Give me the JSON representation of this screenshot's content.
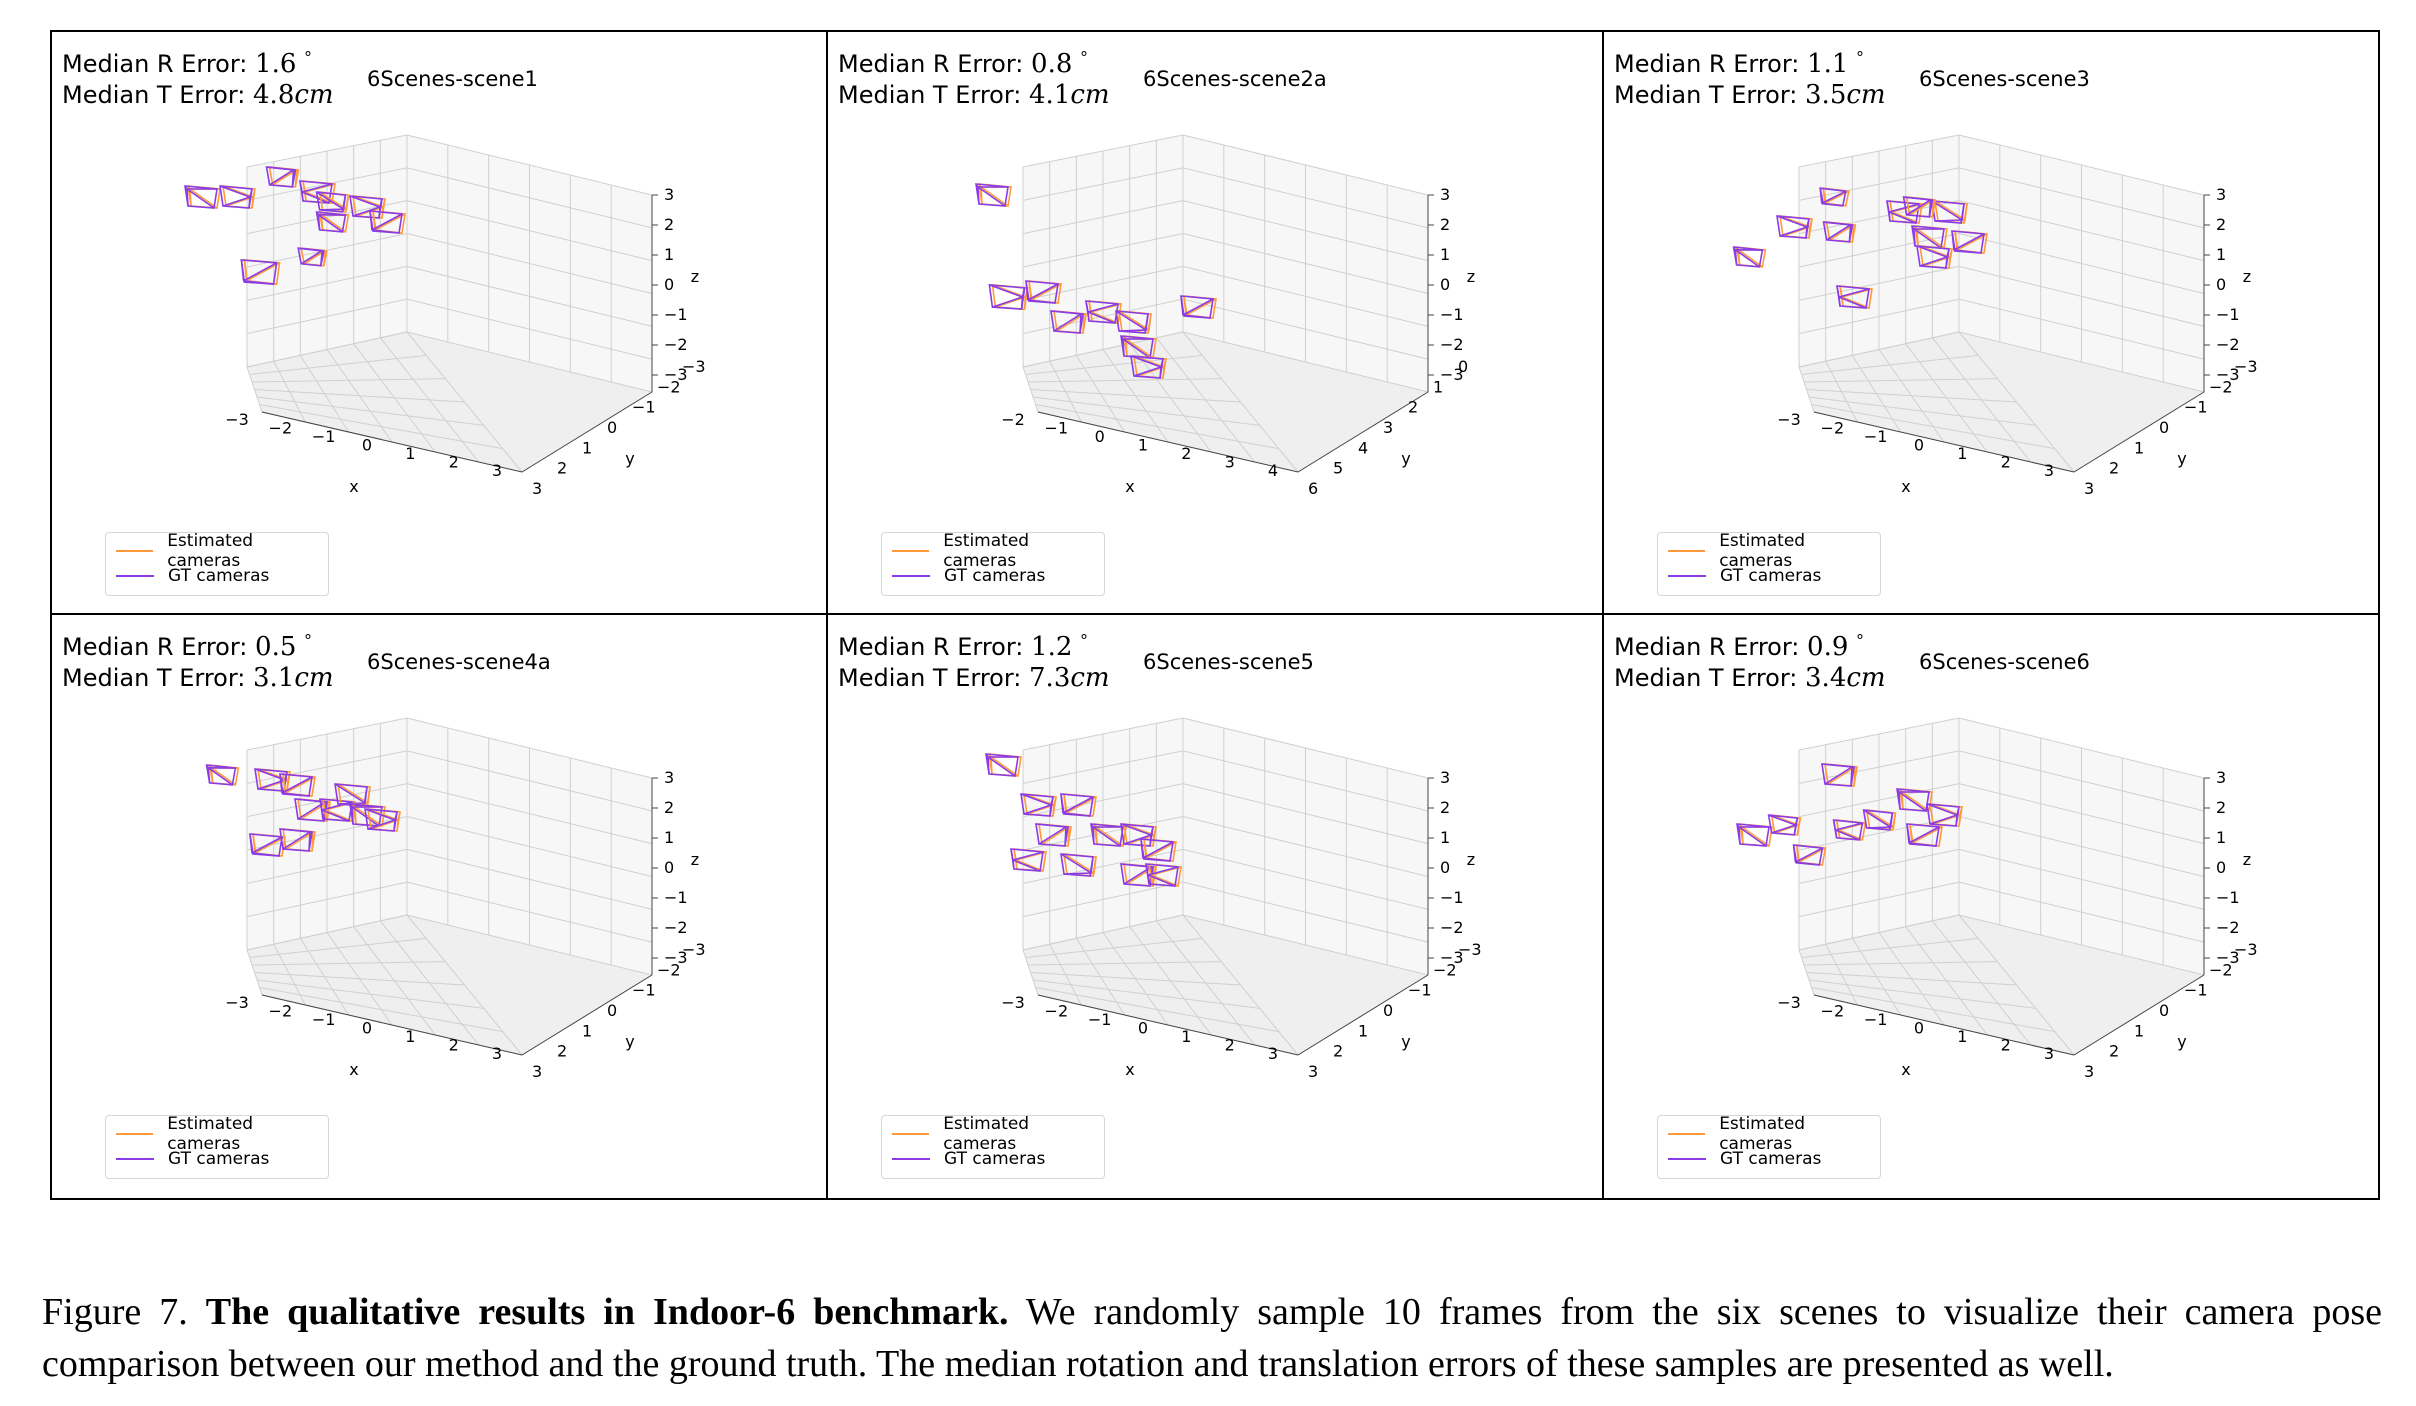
{
  "labels": {
    "r_error": "Median R Error:",
    "t_error": "Median T Error:",
    "degree": "°",
    "unit": "cm",
    "axis_x": "x",
    "axis_y": "y",
    "axis_z": "z"
  },
  "legend": {
    "estimated": "Estimated cameras",
    "gt": "GT cameras"
  },
  "colors": {
    "estimated": "#ff9a3c",
    "gt": "#8a3ce6",
    "grid": "#d0d0d0",
    "pane": "#f2f2f2"
  },
  "panels": [
    {
      "scene": "6Scenes-scene1",
      "r_error": "1.6",
      "t_error": "4.8",
      "x_ticks": [
        "−3",
        "−2",
        "−1",
        "0",
        "1",
        "2",
        "3"
      ],
      "y_ticks": [
        "−3",
        "−2",
        "−1",
        "0",
        "1",
        "2",
        "3"
      ],
      "z_ticks": [
        "3",
        "2",
        "1",
        "0",
        "−1",
        "−2",
        "−3"
      ]
    },
    {
      "scene": "6Scenes-scene2a",
      "r_error": "0.8",
      "t_error": "4.1",
      "x_ticks": [
        "−2",
        "−1",
        "0",
        "1",
        "2",
        "3",
        "4"
      ],
      "y_ticks": [
        "0",
        "1",
        "2",
        "3",
        "4",
        "5",
        "6"
      ],
      "z_ticks": [
        "3",
        "2",
        "1",
        "0",
        "−1",
        "−2",
        "−3"
      ]
    },
    {
      "scene": "6Scenes-scene3",
      "r_error": "1.1",
      "t_error": "3.5",
      "x_ticks": [
        "−3",
        "−2",
        "−1",
        "0",
        "1",
        "2",
        "3"
      ],
      "y_ticks": [
        "−3",
        "−2",
        "−1",
        "0",
        "1",
        "2",
        "3"
      ],
      "z_ticks": [
        "3",
        "2",
        "1",
        "0",
        "−1",
        "−2",
        "−3"
      ]
    },
    {
      "scene": "6Scenes-scene4a",
      "r_error": "0.5",
      "t_error": "3.1",
      "x_ticks": [
        "−3",
        "−2",
        "−1",
        "0",
        "1",
        "2",
        "3"
      ],
      "y_ticks": [
        "−3",
        "−2",
        "−1",
        "0",
        "1",
        "2",
        "3"
      ],
      "z_ticks": [
        "3",
        "2",
        "1",
        "0",
        "−1",
        "−2",
        "−3"
      ]
    },
    {
      "scene": "6Scenes-scene5",
      "r_error": "1.2",
      "t_error": "7.3",
      "x_ticks": [
        "−3",
        "−2",
        "−1",
        "0",
        "1",
        "2",
        "3"
      ],
      "y_ticks": [
        "−3",
        "−2",
        "−1",
        "0",
        "1",
        "2",
        "3"
      ],
      "z_ticks": [
        "3",
        "2",
        "1",
        "0",
        "−1",
        "−2",
        "−3"
      ]
    },
    {
      "scene": "6Scenes-scene6",
      "r_error": "0.9",
      "t_error": "3.4",
      "x_ticks": [
        "−3",
        "−2",
        "−1",
        "0",
        "1",
        "2",
        "3"
      ],
      "y_ticks": [
        "−3",
        "−2",
        "−1",
        "0",
        "1",
        "2",
        "3"
      ],
      "z_ticks": [
        "3",
        "2",
        "1",
        "0",
        "−1",
        "−2",
        "−3"
      ]
    }
  ],
  "caption": {
    "prefix": "Figure 7. ",
    "bold": "The qualitative results in Indoor-6 benchmark.",
    "text": " We randomly sample 10 frames from the six scenes to visualize their camera pose comparison between our method and the ground truth. The median rotation and translation errors of these samples are presented as well."
  }
}
